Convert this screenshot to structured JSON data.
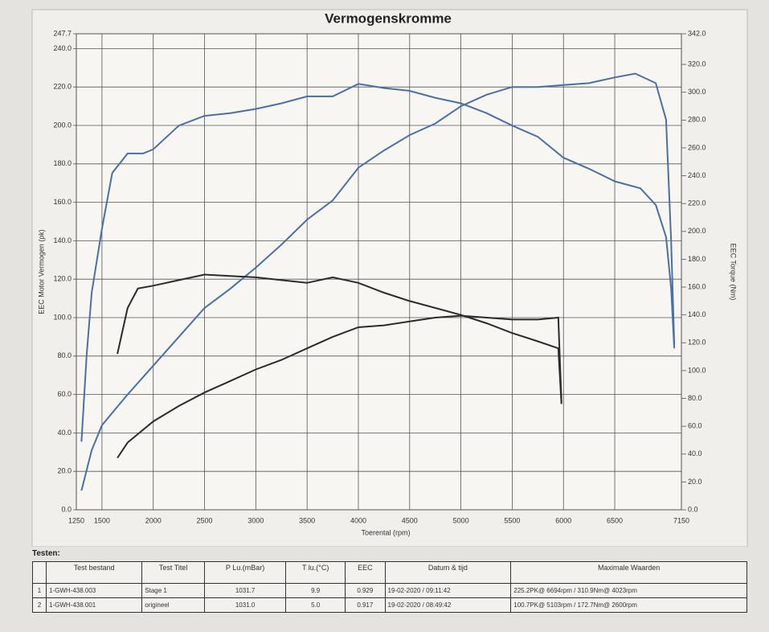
{
  "chart_data": {
    "type": "line",
    "title": "Vermogenskromme",
    "y_label": "EEC Motor Vermogen (pk)",
    "y2_label": "EEC Torque (Nm)",
    "x_label": "Toerental (rpm)",
    "xlim": [
      1250,
      7150
    ],
    "xticks": [
      1250,
      1500,
      2000,
      2500,
      3000,
      3500,
      4000,
      4500,
      5000,
      5500,
      6000,
      6500,
      7150
    ],
    "ylim": [
      0,
      247.7
    ],
    "yticks": [
      {
        "value": 0,
        "label": "0.0"
      },
      {
        "value": 20,
        "label": "20.0"
      },
      {
        "value": 40,
        "label": "40.0"
      },
      {
        "value": 60,
        "label": "60.0"
      },
      {
        "value": 80,
        "label": "80.0"
      },
      {
        "value": 100,
        "label": "100.0"
      },
      {
        "value": 120,
        "label": "120.0"
      },
      {
        "value": 140,
        "label": "140.0"
      },
      {
        "value": 160,
        "label": "160.0"
      },
      {
        "value": 180,
        "label": "180.0"
      },
      {
        "value": 200,
        "label": "200.0"
      },
      {
        "value": 220,
        "label": "220.0"
      },
      {
        "value": 240,
        "label": "240.0"
      },
      247.7
    ],
    "y2lim": [
      0,
      342
    ],
    "y2ticks": [
      {
        "value": 0,
        "label": "0.0"
      },
      {
        "value": 20,
        "label": "20.0"
      },
      {
        "value": 40,
        "label": "40.0"
      },
      {
        "value": 60,
        "label": "60.0"
      },
      {
        "value": 80,
        "label": "80.0"
      },
      {
        "value": 100,
        "label": "100.0"
      },
      {
        "value": 120,
        "label": "120.0"
      },
      {
        "value": 140,
        "label": "140.0"
      },
      {
        "value": 160,
        "label": "160.0"
      },
      {
        "value": 180,
        "label": "180.0"
      },
      {
        "value": 200,
        "label": "200.0"
      },
      {
        "value": 220,
        "label": "220.0"
      },
      {
        "value": 240,
        "label": "240.0"
      },
      {
        "value": 260,
        "label": "260.0"
      },
      {
        "value": 280,
        "label": "280.0"
      },
      {
        "value": 300,
        "label": "300.0"
      },
      {
        "value": 320,
        "label": "320.0"
      },
      {
        "value": 342,
        "label": "342.0"
      }
    ],
    "grid": true,
    "series": [
      {
        "color": "#4a6fa8",
        "x": [
          1300,
          1400,
          1500,
          1750,
          2000,
          2250,
          2500,
          2750,
          3000,
          3250,
          3500,
          3750,
          4000,
          4250,
          4500,
          4750,
          5000,
          5250,
          5500,
          5750,
          6000,
          6250,
          6500,
          6700,
          6900,
          7000,
          7050,
          7080
        ],
        "values": [
          10,
          31,
          44,
          60,
          75,
          90,
          105,
          115,
          126,
          138,
          151,
          161,
          178,
          187,
          195,
          201,
          210,
          216,
          220,
          220,
          221,
          222,
          225,
          227,
          222,
          203,
          140,
          86
        ]
      },
      {
        "color": "#4a6fa8",
        "axis": "y2",
        "x": [
          1300,
          1350,
          1400,
          1500,
          1600,
          1750,
          1900,
          2000,
          2250,
          2500,
          2750,
          3000,
          3250,
          3500,
          3750,
          4000,
          4250,
          4500,
          4750,
          5000,
          5250,
          5500,
          5750,
          6000,
          6250,
          6500,
          6750,
          6900,
          7000,
          7050,
          7080
        ],
        "values": [
          49,
          111,
          156,
          202,
          242,
          256,
          256,
          259,
          276,
          283,
          285,
          288,
          292,
          297,
          297,
          306,
          303,
          301,
          296,
          292,
          285,
          276,
          268,
          253,
          245,
          236,
          231,
          219,
          196,
          159,
          116
        ]
      },
      {
        "color": "#2b2b2b",
        "x": [
          1650,
          1750,
          2000,
          2250,
          2500,
          2750,
          3000,
          3250,
          3500,
          3750,
          4000,
          4250,
          4500,
          4750,
          5000,
          5250,
          5500,
          5750,
          5950,
          5980
        ],
        "values": [
          27,
          35,
          46,
          54,
          61,
          67,
          73,
          78,
          84,
          90,
          95,
          96,
          98,
          100,
          101,
          100,
          99,
          99,
          100,
          56
        ]
      },
      {
        "color": "#2b2b2b",
        "axis": "y2",
        "x": [
          1650,
          1750,
          1850,
          2000,
          2250,
          2500,
          2750,
          3000,
          3250,
          3500,
          3750,
          4000,
          4250,
          4500,
          4750,
          5000,
          5250,
          5500,
          5750,
          5950,
          5980
        ],
        "values": [
          112,
          145,
          159,
          161,
          165,
          169,
          168,
          167,
          165,
          163,
          167,
          163,
          156,
          150,
          145,
          140,
          134,
          127,
          121,
          116,
          76
        ]
      }
    ]
  },
  "table": {
    "label": "Testen:",
    "columns": [
      "Test bestand",
      "Test Titel",
      "P Lu.(mBar)",
      "T lu.(°C)",
      "EEC",
      "Datum & tijd",
      "Maximale Waarden"
    ],
    "rows": [
      [
        "1",
        "1-GWH-438.003",
        "Stage 1",
        "1031.7",
        "9.9",
        "0.929",
        "19-02-2020 / 09:11:42",
        "225.2PK@ 6694rpm / 310.9Nm@ 4023rpm"
      ],
      [
        "2",
        "1-GWH-438.001",
        "origineel",
        "1031.0",
        "5.0",
        "0.917",
        "19-02-2020 / 08:49:42",
        "100.7PK@ 5103rpm / 172.7Nm@ 2600rpm"
      ]
    ]
  }
}
